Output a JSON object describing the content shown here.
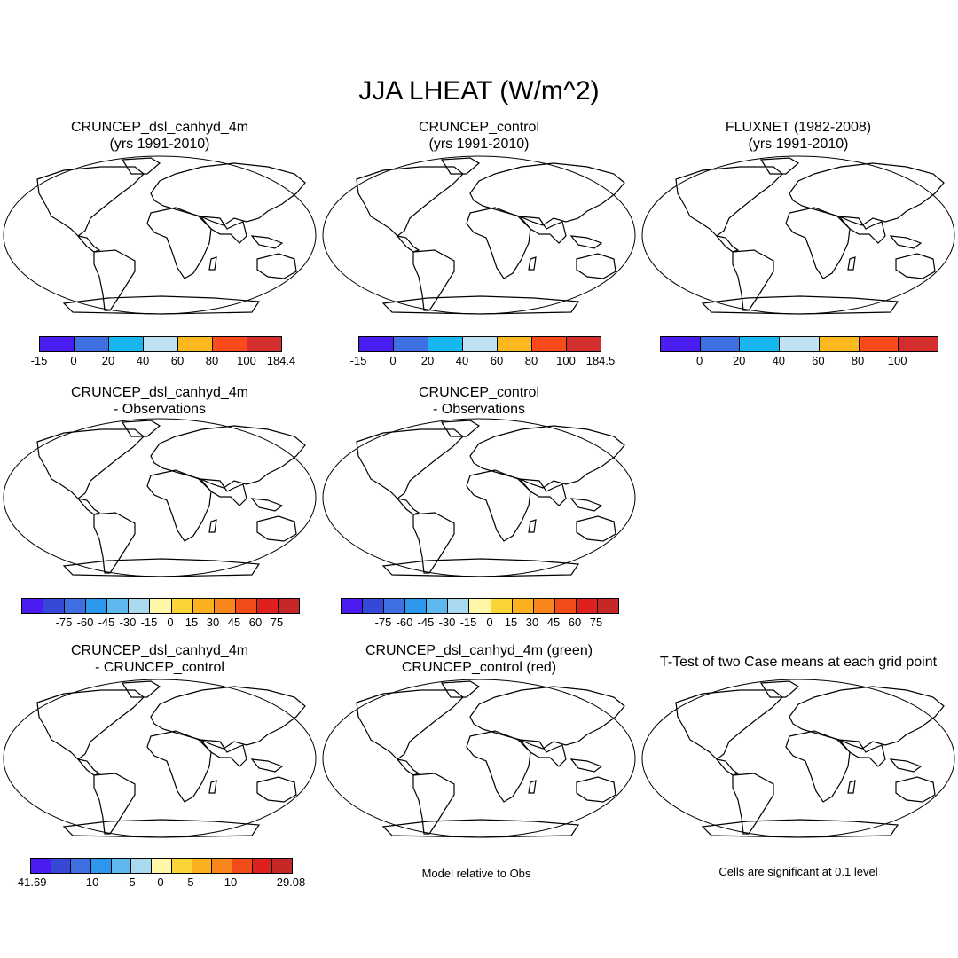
{
  "title": "JJA LHEAT (W/m^2)",
  "colors": {
    "abs": [
      "#4b1cf0",
      "#3f6fe0",
      "#19b7f0",
      "#bfe3f3",
      "#fbb91f",
      "#fc4b1a",
      "#d42d2d"
    ],
    "diff": [
      "#4b1cf0",
      "#3548d8",
      "#3f6fe0",
      "#2d97ee",
      "#5eb8ee",
      "#a9d9ee",
      "#fff6a8",
      "#fbd43a",
      "#fbb01f",
      "#f9861c",
      "#f24c1b",
      "#e01f1f",
      "#c62828"
    ],
    "diff2": [
      "#4b1cf0",
      "#3548d8",
      "#3f6fe0",
      "#2d97ee",
      "#5eb8ee",
      "#a9d9ee",
      "#fff6a8",
      "#fbd43a",
      "#fbb01f",
      "#f9861c",
      "#f24c1b",
      "#e01f1f",
      "#c62828"
    ],
    "green": "#00dd00",
    "red": "#ee0000",
    "ocean": "#ffffff",
    "land_outline": "#000000"
  },
  "panels": [
    {
      "line1": "CRUNCEP_dsl_canhyd_4m",
      "line2": "(yrs 1991-2010)",
      "fill": "abs",
      "icon": "world-map"
    },
    {
      "line1": "CRUNCEP_control",
      "line2": "(yrs 1991-2010)",
      "fill": "abs",
      "icon": "world-map"
    },
    {
      "line1": "FLUXNET (1982-2008)",
      "line2": "(yrs 1991-2010)",
      "fill": "abs-obs",
      "icon": "world-map"
    },
    {
      "line1": "CRUNCEP_dsl_canhyd_4m",
      "line2": "- Observations",
      "fill": "diff",
      "icon": "world-map"
    },
    {
      "line1": "CRUNCEP_control",
      "line2": "- Observations",
      "fill": "diff",
      "icon": "world-map"
    },
    {
      "line1": "CRUNCEP_dsl_canhyd_4m",
      "line2": "- CRUNCEP_control",
      "fill": "diff2",
      "icon": "world-map"
    },
    {
      "line1": "CRUNCEP_dsl_canhyd_4m (green)",
      "line2": "CRUNCEP_control (red)",
      "fill": "greenred",
      "icon": "world-map"
    },
    {
      "line1": "T-Test of two Case means at each grid point",
      "line2": "",
      "fill": "red",
      "icon": "world-map"
    }
  ],
  "colorbars": [
    {
      "labels": [
        "-15",
        "0",
        "20",
        "40",
        "60",
        "80",
        "100",
        "184.4"
      ]
    },
    {
      "labels": [
        "-15",
        "0",
        "20",
        "40",
        "60",
        "80",
        "100",
        "184.5"
      ]
    },
    {
      "labels": [
        "0",
        "20",
        "40",
        "60",
        "80",
        "100"
      ]
    },
    {
      "labels": [
        "-75",
        "-60",
        "-45",
        "-30",
        "-15",
        "0",
        "15",
        "30",
        "45",
        "60",
        "75"
      ]
    },
    {
      "labels": [
        "-75",
        "-60",
        "-45",
        "-30",
        "-15",
        "0",
        "15",
        "30",
        "45",
        "60",
        "75"
      ]
    },
    {
      "labels": [
        "-41.69",
        "-10",
        "-5",
        "0",
        "5",
        "10",
        "29.08"
      ]
    }
  ],
  "notes": {
    "model_relative": "Model relative to Obs",
    "significance": "Cells are significant at 0.1 level"
  }
}
